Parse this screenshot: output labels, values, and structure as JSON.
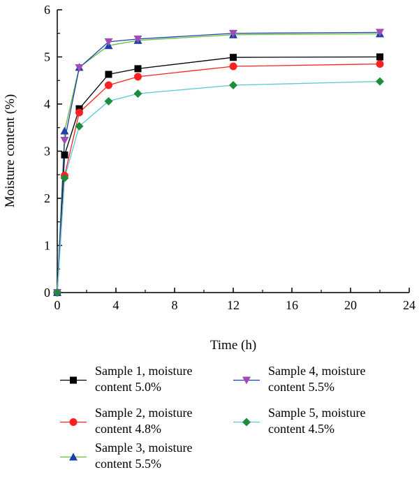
{
  "chart_data": {
    "type": "line",
    "xlabel": "Time (h)",
    "ylabel": "Moisture content (%)",
    "xlim": [
      0,
      24
    ],
    "ylim": [
      0,
      6
    ],
    "xticks": [
      0,
      4,
      8,
      12,
      16,
      20,
      24
    ],
    "yticks": [
      0,
      1,
      2,
      3,
      4,
      5,
      6
    ],
    "grid": false,
    "legend_position": "bottom",
    "series": [
      {
        "name_line1": "Sample 1, moisture",
        "name_line2": "content 5.0%",
        "color": "#000000",
        "line_color": "#000000",
        "marker": "square",
        "x": [
          0,
          0.5,
          1.5,
          3.5,
          5.5,
          12,
          22
        ],
        "y": [
          0,
          2.92,
          3.9,
          4.63,
          4.75,
          4.99,
          5.0
        ]
      },
      {
        "name_line1": "Sample 2, moisture",
        "name_line2": "content 4.8%",
        "color": "#ff2020",
        "line_color": "#ff2020",
        "marker": "circle",
        "x": [
          0,
          0.5,
          1.5,
          3.5,
          5.5,
          12,
          22
        ],
        "y": [
          0,
          2.48,
          3.82,
          4.4,
          4.58,
          4.8,
          4.85
        ]
      },
      {
        "name_line1": "Sample 3, moisture",
        "name_line2": "content 5.5%",
        "color": "#1f3fa8",
        "line_color": "#5fc13a",
        "marker": "triangle-up",
        "x": [
          0,
          0.5,
          1.5,
          3.5,
          5.5,
          12,
          22
        ],
        "y": [
          0,
          3.43,
          4.78,
          5.24,
          5.35,
          5.47,
          5.49
        ]
      },
      {
        "name_line1": "Sample 4, moisture",
        "name_line2": "content 5.5%",
        "color": "#a04cb8",
        "line_color": "#1f3fa8",
        "marker": "triangle-down",
        "x": [
          0,
          0.5,
          1.5,
          3.5,
          5.5,
          12,
          22
        ],
        "y": [
          0,
          3.23,
          4.77,
          5.32,
          5.38,
          5.5,
          5.52
        ]
      },
      {
        "name_line1": "Sample 5, moisture",
        "name_line2": "content 4.5%",
        "color": "#1a8c3c",
        "line_color": "#57c9d6",
        "marker": "diamond",
        "x": [
          0,
          0.5,
          1.5,
          3.5,
          5.5,
          12,
          22
        ],
        "y": [
          0,
          2.43,
          3.53,
          4.06,
          4.22,
          4.4,
          4.48
        ]
      }
    ]
  }
}
